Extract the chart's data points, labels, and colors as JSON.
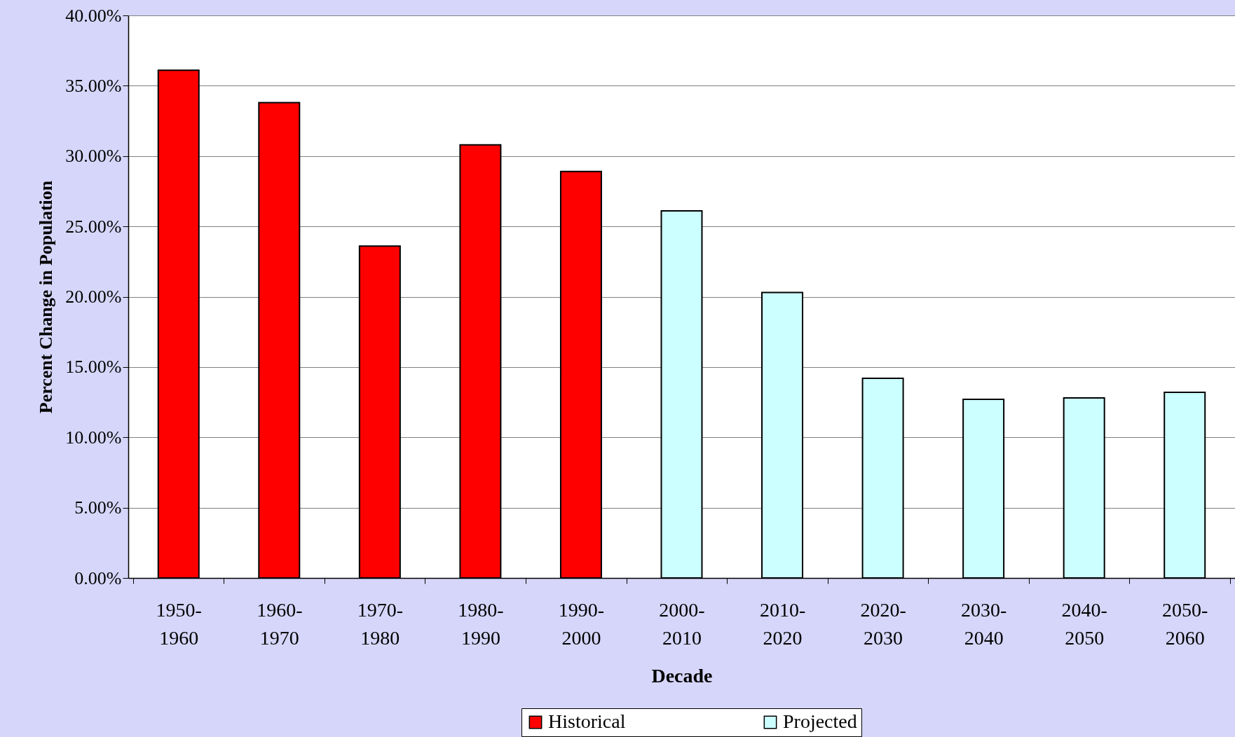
{
  "chart_data": {
    "type": "bar",
    "stacked": true,
    "xlabel": "Decade",
    "ylabel": "Percent Change in Population",
    "categories": [
      "1950-1960",
      "1960-1970",
      "1970-1980",
      "1980-1990",
      "1990-2000",
      "2000-2010",
      "2010-2020",
      "2020-2030",
      "2030-2040",
      "2040-2050",
      "2050-2060"
    ],
    "series": [
      {
        "name": "Historical",
        "color": "#ff0000",
        "values": [
          36.1,
          33.8,
          23.6,
          30.8,
          28.9,
          null,
          null,
          null,
          null,
          null,
          null
        ]
      },
      {
        "name": "Projected",
        "color": "#ccffff",
        "values": [
          null,
          null,
          null,
          null,
          null,
          26.1,
          20.3,
          14.2,
          12.7,
          12.8,
          13.2
        ]
      }
    ],
    "ylim": [
      0,
      40
    ],
    "yticks": [
      {
        "value": 0,
        "label": "0.00%"
      },
      {
        "value": 5,
        "label": "5.00%"
      },
      {
        "value": 10,
        "label": "10.00%"
      },
      {
        "value": 15,
        "label": "15.00%"
      },
      {
        "value": 20,
        "label": "20.00%"
      },
      {
        "value": 25,
        "label": "25.00%"
      },
      {
        "value": 30,
        "label": "30.00%"
      },
      {
        "value": 35,
        "label": "35.00%"
      },
      {
        "value": 40,
        "label": "40.00%"
      }
    ],
    "grid": "y",
    "legend": "bottom"
  }
}
